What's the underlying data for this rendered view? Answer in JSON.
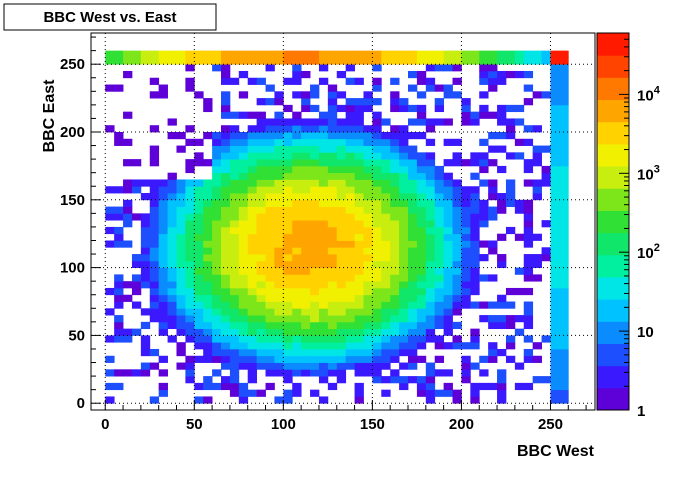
{
  "chart_data": {
    "type": "heatmap",
    "title": "BBC West vs. East",
    "xlabel": "BBC West",
    "ylabel": "BBC East",
    "xlim": [
      -8,
      275
    ],
    "ylim": [
      -5,
      273
    ],
    "xticks": [
      0,
      50,
      100,
      150,
      200,
      250
    ],
    "yticks": [
      0,
      50,
      100,
      150,
      200,
      250
    ],
    "grid": true,
    "bin_width": 5,
    "z_scale": "log",
    "z_range": [
      1,
      60000
    ],
    "colorbar": {
      "ticks": [
        {
          "value": 1,
          "label": "1"
        },
        {
          "value": 10,
          "label": "10"
        },
        {
          "value": 100,
          "label": "10",
          "exp": "2"
        },
        {
          "value": 1000,
          "label": "10",
          "exp": "3"
        },
        {
          "value": 10000,
          "label": "10",
          "exp": "4"
        }
      ]
    },
    "peak": {
      "x": 115,
      "y": 115,
      "count": 6000
    },
    "colors": {
      "palette": [
        "#5e00d8",
        "#3b19ff",
        "#1e4fff",
        "#0a8cff",
        "#00c2ff",
        "#00e6e6",
        "#00f0a0",
        "#10e66a",
        "#30e035",
        "#7de61a",
        "#c8ee10",
        "#f0f000",
        "#ffd200",
        "#ffa500",
        "#ff7800",
        "#ff4400",
        "#ff1a00"
      ]
    }
  }
}
